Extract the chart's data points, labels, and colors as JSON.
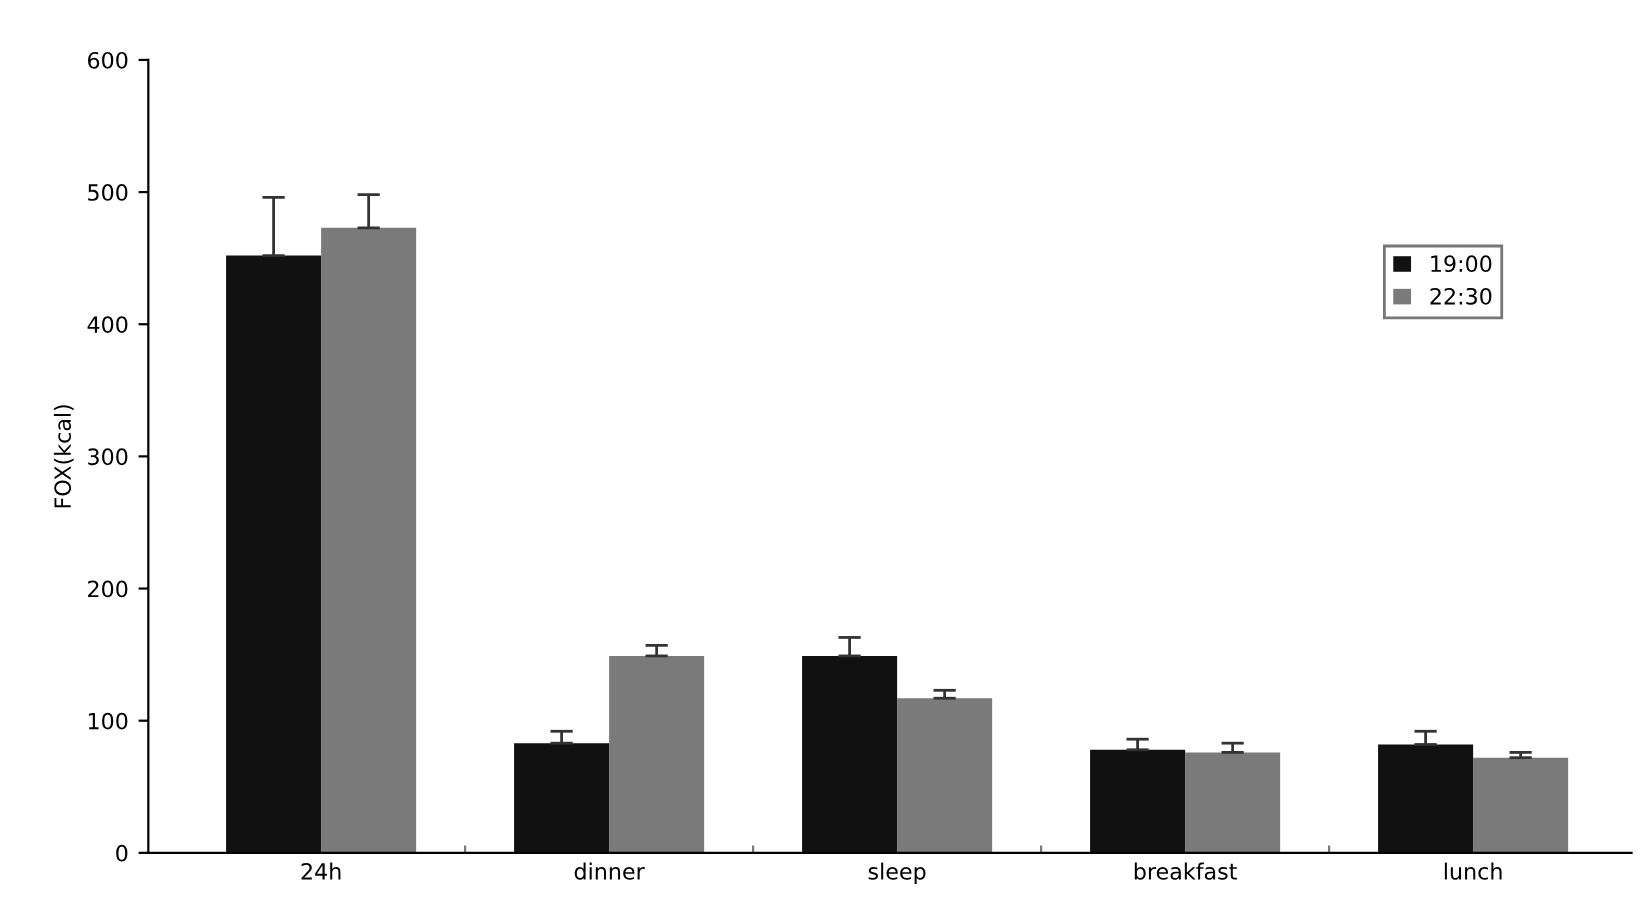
{
  "chart_data": {
    "type": "bar",
    "ylabel": "FOX(kcal)",
    "categories": [
      "24h",
      "dinner",
      "sleep",
      "breakfast",
      "lunch"
    ],
    "series": [
      {
        "name": "19:00",
        "color": "#111111",
        "values": [
          452,
          83,
          149,
          78,
          82
        ],
        "errors": [
          [
            452,
            496
          ],
          [
            83,
            92
          ],
          [
            149,
            163
          ],
          [
            78,
            86
          ],
          [
            82,
            92
          ]
        ]
      },
      {
        "name": "22:30",
        "color": "#7a7a7a",
        "values": [
          473,
          149,
          117,
          76,
          72
        ],
        "errors": [
          [
            473,
            498
          ],
          [
            149,
            157
          ],
          [
            117,
            123
          ],
          [
            76,
            83
          ],
          [
            72,
            76
          ]
        ]
      }
    ],
    "ylim": [
      0,
      600
    ],
    "yticks": [
      0,
      100,
      200,
      300,
      400,
      500,
      600
    ],
    "grid": false,
    "legend": "right"
  }
}
